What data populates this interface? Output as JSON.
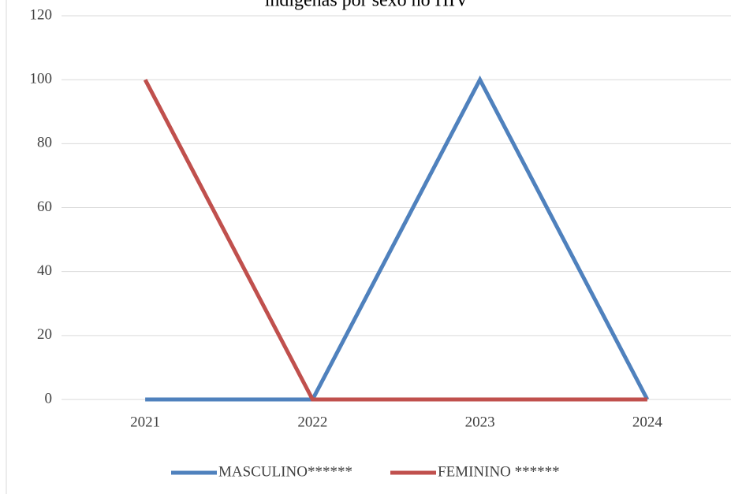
{
  "chart_data": {
    "type": "line",
    "title": "indígenas por sexo no HIV",
    "categories": [
      "2021",
      "2022",
      "2023",
      "2024"
    ],
    "series": [
      {
        "name": "MASCULINO******",
        "color": "#4f81bd",
        "values": [
          0,
          0,
          100,
          0
        ]
      },
      {
        "name": "FEMININO ******",
        "color": "#c0504d",
        "values": [
          100,
          0,
          0,
          0
        ]
      }
    ],
    "ylim": [
      0,
      120
    ],
    "yticks": [
      0,
      20,
      40,
      60,
      80,
      100,
      120
    ],
    "grid": true,
    "legend": "bottom"
  }
}
